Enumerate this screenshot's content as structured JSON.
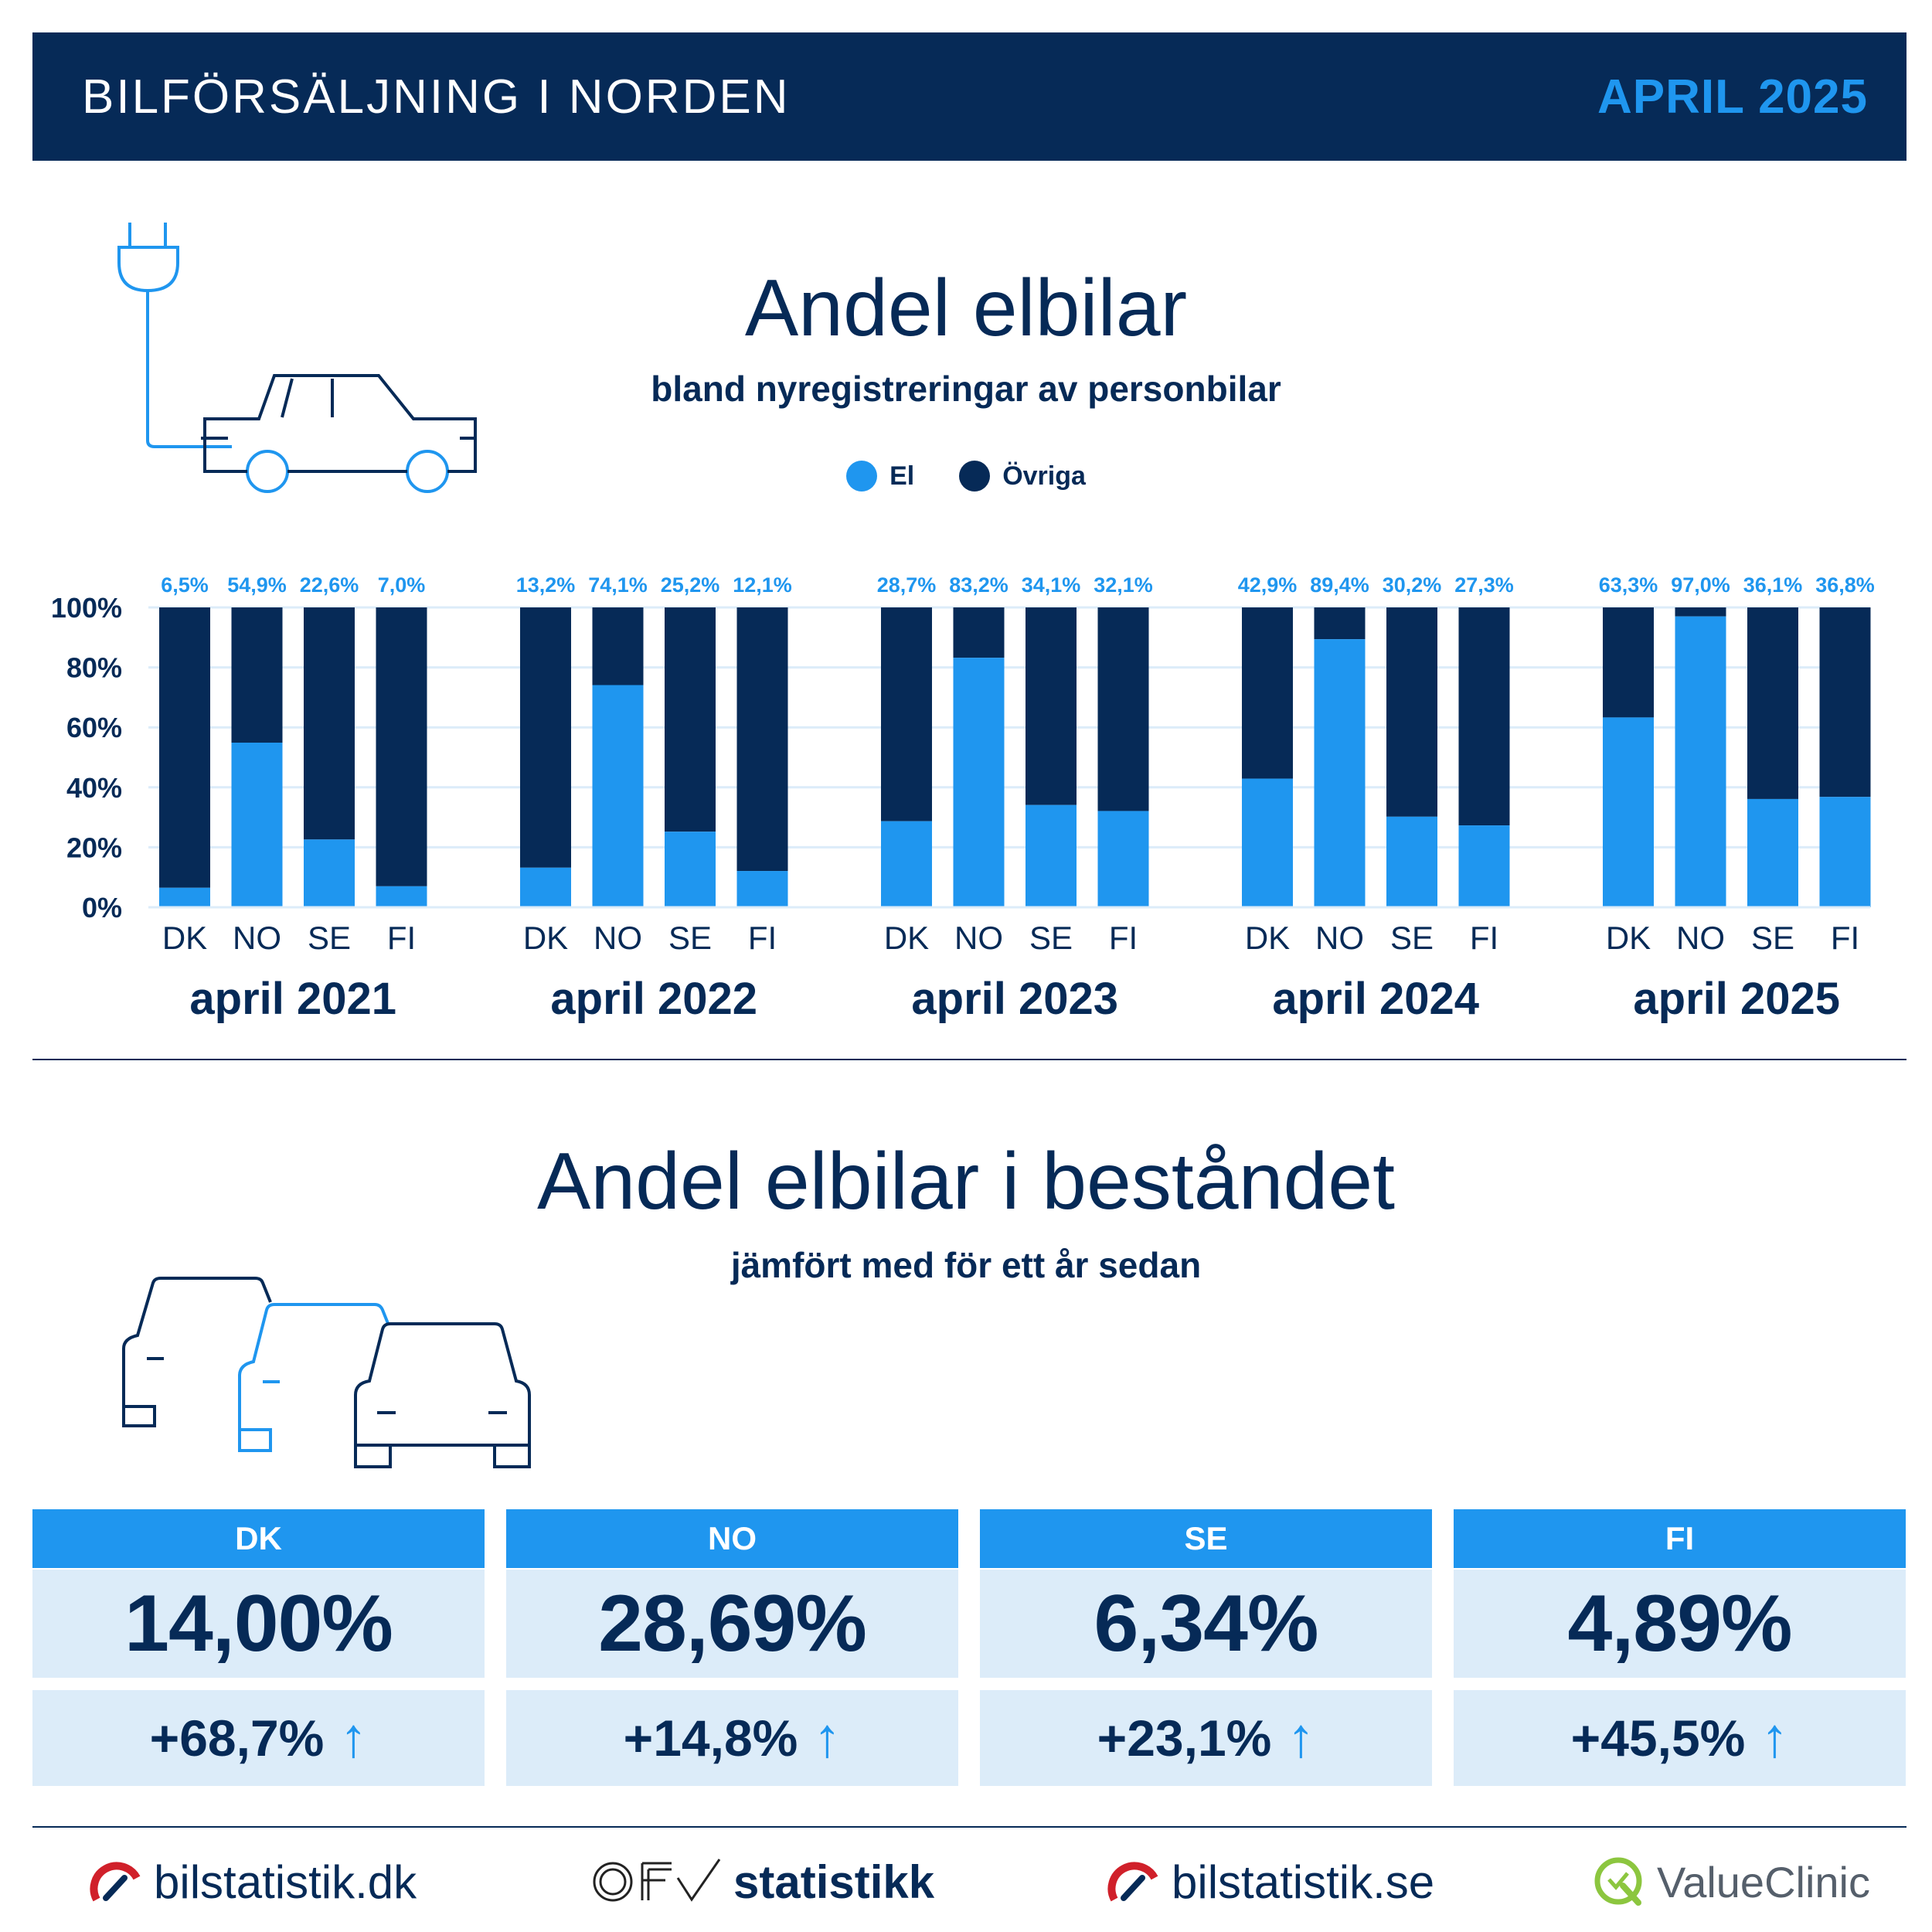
{
  "header": {
    "title": "BILFÖRSÄLJNING I NORDEN",
    "period": "APRIL 2025"
  },
  "colors": {
    "el": "#1f96ef",
    "other": "#062a57",
    "light": "#dcecf9"
  },
  "section1": {
    "title": "Andel elbilar",
    "subtitle": "bland nyregistreringar av personbilar"
  },
  "legend": [
    {
      "label": "El",
      "color": "#1f96ef"
    },
    {
      "label": "Övriga",
      "color": "#062a57"
    }
  ],
  "chart_data": {
    "type": "bar",
    "stacked": true,
    "ylim": [
      0,
      100
    ],
    "yticks": [
      "0%",
      "20%",
      "40%",
      "60%",
      "80%",
      "100%"
    ],
    "countries": [
      "DK",
      "NO",
      "SE",
      "FI"
    ],
    "groups": [
      {
        "label": "april 2021",
        "values": [
          6.5,
          54.9,
          22.6,
          7.0
        ],
        "labels": [
          "6,5%",
          "54,9%",
          "22,6%",
          "7,0%"
        ]
      },
      {
        "label": "april 2022",
        "values": [
          13.2,
          74.1,
          25.2,
          12.1
        ],
        "labels": [
          "13,2%",
          "74,1%",
          "25,2%",
          "12,1%"
        ]
      },
      {
        "label": "april 2023",
        "values": [
          28.7,
          83.2,
          34.1,
          32.1
        ],
        "labels": [
          "28,7%",
          "83,2%",
          "34,1%",
          "32,1%"
        ]
      },
      {
        "label": "april 2024",
        "values": [
          42.9,
          89.4,
          30.2,
          27.3
        ],
        "labels": [
          "42,9%",
          "89,4%",
          "30,2%",
          "27,3%"
        ]
      },
      {
        "label": "april 2025",
        "values": [
          63.3,
          97.0,
          36.1,
          36.8
        ],
        "labels": [
          "63,3%",
          "97,0%",
          "36,1%",
          "36,8%"
        ]
      }
    ],
    "series": [
      {
        "name": "El",
        "color": "#1f96ef"
      },
      {
        "name": "Övriga",
        "color": "#062a57"
      }
    ],
    "grid": true,
    "legend_position": "top-center"
  },
  "section2": {
    "title": "Andel elbilar i beståndet",
    "subtitle": "jämfört med för ett år sedan"
  },
  "stock": [
    {
      "country": "DK",
      "share": "14,00%",
      "change": "+68,7%",
      "arrow": "↑"
    },
    {
      "country": "NO",
      "share": "28,69%",
      "change": "+14,8%",
      "arrow": "↑"
    },
    {
      "country": "SE",
      "share": "6,34%",
      "change": "+23,1%",
      "arrow": "↑"
    },
    {
      "country": "FI",
      "share": "4,89%",
      "change": "+45,5%",
      "arrow": "↑"
    }
  ],
  "footer": {
    "logo1": "bilstatistik.dk",
    "logo2_mark": "OFV",
    "logo2": "statistikk",
    "logo3": "bilstatistik.se",
    "logo4": "ValueClinic"
  }
}
